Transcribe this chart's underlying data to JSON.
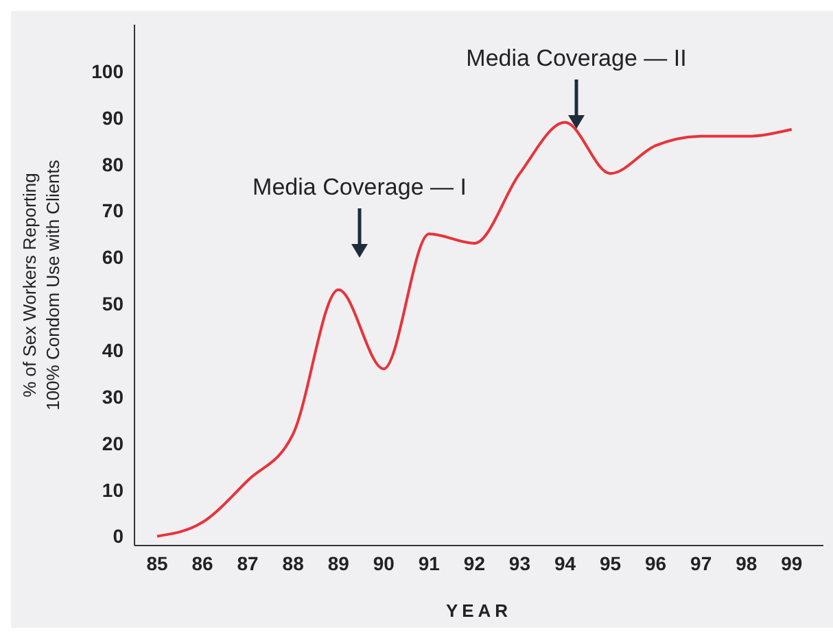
{
  "chart_data": {
    "type": "line",
    "xlabel": "YEAR",
    "ylabel": "% of Sex Workers Reporting\n100% Condom Use with Clients",
    "x": [
      85,
      86,
      87,
      88,
      89,
      90,
      91,
      92,
      93,
      94,
      95,
      96,
      97,
      98,
      99
    ],
    "series": [
      {
        "color": "#e8333a",
        "values": [
          0,
          3,
          12,
          22,
          53,
          36,
          65,
          63,
          78,
          89,
          78,
          84,
          86,
          86,
          87.5
        ]
      }
    ],
    "xlim": [
      84.5,
      99.7
    ],
    "xticks": [
      85,
      86,
      87,
      88,
      89,
      90,
      91,
      92,
      93,
      94,
      95,
      96,
      97,
      98,
      99
    ],
    "ylim": [
      -2,
      110
    ],
    "yticks": [
      0,
      10,
      20,
      30,
      40,
      50,
      60,
      70,
      80,
      90,
      100
    ],
    "grid": false,
    "legend": false,
    "marker": "none",
    "line_style": "solid",
    "annotations": [
      "Media Coverage — I",
      "Media Coverage — II"
    ]
  }
}
